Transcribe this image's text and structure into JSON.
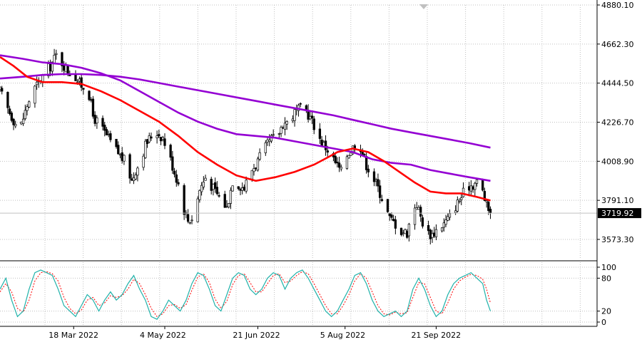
{
  "colors": {
    "background": "#ffffff",
    "grid": "#c0c0c0",
    "candle": "#000000",
    "ma_fast": "#ff0000",
    "ma_mid": "#9400d3",
    "ma_slow": "#9400d3",
    "stoch_main": "#20b2aa",
    "stoch_signal": "#ff0000",
    "current_price_bg": "#000000",
    "current_price_line": "#c0c0c0"
  },
  "chart_data": [
    {
      "type": "candlestick",
      "title": "",
      "xlabel": "",
      "ylabel": "",
      "y_ticks": [
        "4880.10",
        "4662.30",
        "4444.50",
        "4226.70",
        "4008.90",
        "3791.10",
        "3573.30"
      ],
      "y_tick_values": [
        4880.1,
        4662.3,
        4444.5,
        4226.7,
        4008.9,
        3791.1,
        3573.3
      ],
      "x_ticks": [
        "18 Mar 2022",
        "4 May 2022",
        "21 Jun 2022",
        "5 Aug 2022",
        "21 Sep 2022"
      ],
      "x_tick_days": [
        76,
        123,
        171,
        216,
        263
      ],
      "ylim": [
        3490,
        4880.1
      ],
      "current_price": "3719.92",
      "current_price_value": 3719.92,
      "grid": true,
      "x_day_range": [
        38,
        346
      ],
      "close_anchors": [
        [
          38,
          4400
        ],
        [
          42,
          4300
        ],
        [
          44,
          4260
        ],
        [
          48,
          4180
        ],
        [
          52,
          4320
        ],
        [
          55,
          4400
        ],
        [
          60,
          4480
        ],
        [
          64,
          4540
        ],
        [
          67,
          4600
        ],
        [
          70,
          4560
        ],
        [
          73,
          4510
        ],
        [
          76,
          4500
        ],
        [
          79,
          4440
        ],
        [
          82,
          4420
        ],
        [
          84,
          4380
        ],
        [
          86,
          4260
        ],
        [
          90,
          4200
        ],
        [
          93,
          4150
        ],
        [
          96,
          4100
        ],
        [
          100,
          4040
        ],
        [
          103,
          4000
        ],
        [
          106,
          3900
        ],
        [
          108,
          3960
        ],
        [
          110,
          4000
        ],
        [
          113,
          4100
        ],
        [
          116,
          4150
        ],
        [
          119,
          4170
        ],
        [
          122,
          4140
        ],
        [
          125,
          4050
        ],
        [
          128,
          3950
        ],
        [
          131,
          3850
        ],
        [
          133,
          3740
        ],
        [
          135,
          3680
        ],
        [
          138,
          3700
        ],
        [
          141,
          3850
        ],
        [
          144,
          3920
        ],
        [
          146,
          3890
        ],
        [
          149,
          3840
        ],
        [
          152,
          3800
        ],
        [
          155,
          3750
        ],
        [
          158,
          3900
        ],
        [
          161,
          3880
        ],
        [
          164,
          3860
        ],
        [
          167,
          3950
        ],
        [
          170,
          3990
        ],
        [
          173,
          4050
        ],
        [
          176,
          4100
        ],
        [
          178,
          4130
        ],
        [
          181,
          4150
        ],
        [
          184,
          4220
        ],
        [
          187,
          4230
        ],
        [
          190,
          4280
        ],
        [
          193,
          4300
        ],
        [
          196,
          4290
        ],
        [
          198,
          4250
        ],
        [
          200,
          4210
        ],
        [
          202,
          4150
        ],
        [
          205,
          4100
        ],
        [
          208,
          4060
        ],
        [
          211,
          4000
        ],
        [
          214,
          3950
        ],
        [
          216,
          4030
        ],
        [
          218,
          4060
        ],
        [
          221,
          4100
        ],
        [
          224,
          4090
        ],
        [
          227,
          3990
        ],
        [
          230,
          3930
        ],
        [
          233,
          3860
        ],
        [
          236,
          3780
        ],
        [
          239,
          3690
        ],
        [
          242,
          3660
        ],
        [
          245,
          3620
        ],
        [
          248,
          3610
        ],
        [
          251,
          3750
        ],
        [
          253,
          3770
        ],
        [
          255,
          3700
        ],
        [
          258,
          3610
        ],
        [
          261,
          3600
        ],
        [
          264,
          3640
        ],
        [
          267,
          3660
        ],
        [
          270,
          3700
        ],
        [
          273,
          3760
        ],
        [
          276,
          3810
        ],
        [
          279,
          3870
        ],
        [
          282,
          3880
        ],
        [
          285,
          3900
        ],
        [
          287,
          3840
        ],
        [
          289,
          3760
        ],
        [
          291,
          3719.92
        ]
      ],
      "series": [
        {
          "name": "",
          "type": "moving-average",
          "values_ref": "ma_fast"
        },
        {
          "name": "",
          "type": "moving-average",
          "values_ref": "ma_mid"
        },
        {
          "name": "",
          "type": "moving-average",
          "values_ref": "ma_slow"
        }
      ],
      "ma_fast": [
        [
          38,
          4590
        ],
        [
          45,
          4540
        ],
        [
          52,
          4480
        ],
        [
          60,
          4450
        ],
        [
          70,
          4450
        ],
        [
          80,
          4440
        ],
        [
          90,
          4400
        ],
        [
          100,
          4350
        ],
        [
          110,
          4290
        ],
        [
          120,
          4230
        ],
        [
          130,
          4150
        ],
        [
          140,
          4060
        ],
        [
          150,
          3990
        ],
        [
          160,
          3930
        ],
        [
          170,
          3900
        ],
        [
          180,
          3920
        ],
        [
          190,
          3950
        ],
        [
          200,
          3990
        ],
        [
          207,
          4030
        ],
        [
          212,
          4060
        ],
        [
          220,
          4080
        ],
        [
          228,
          4060
        ],
        [
          236,
          4010
        ],
        [
          244,
          3950
        ],
        [
          252,
          3890
        ],
        [
          260,
          3840
        ],
        [
          268,
          3830
        ],
        [
          276,
          3830
        ],
        [
          284,
          3810
        ],
        [
          291,
          3790
        ]
      ],
      "ma_mid": [
        [
          38,
          4600
        ],
        [
          50,
          4580
        ],
        [
          60,
          4560
        ],
        [
          70,
          4550
        ],
        [
          80,
          4530
        ],
        [
          90,
          4500
        ],
        [
          100,
          4460
        ],
        [
          110,
          4400
        ],
        [
          120,
          4340
        ],
        [
          130,
          4280
        ],
        [
          140,
          4230
        ],
        [
          150,
          4190
        ],
        [
          160,
          4160
        ],
        [
          170,
          4150
        ],
        [
          180,
          4140
        ],
        [
          190,
          4120
        ],
        [
          200,
          4100
        ],
        [
          210,
          4080
        ],
        [
          220,
          4060
        ],
        [
          230,
          4020
        ],
        [
          240,
          4000
        ],
        [
          250,
          3990
        ],
        [
          260,
          3960
        ],
        [
          270,
          3940
        ],
        [
          280,
          3920
        ],
        [
          291,
          3900
        ]
      ],
      "ma_slow": [
        [
          38,
          4470
        ],
        [
          50,
          4480
        ],
        [
          60,
          4490
        ],
        [
          70,
          4495
        ],
        [
          80,
          4495
        ],
        [
          90,
          4490
        ],
        [
          100,
          4480
        ],
        [
          110,
          4465
        ],
        [
          120,
          4445
        ],
        [
          130,
          4425
        ],
        [
          140,
          4405
        ],
        [
          150,
          4385
        ],
        [
          160,
          4365
        ],
        [
          170,
          4345
        ],
        [
          180,
          4325
        ],
        [
          190,
          4305
        ],
        [
          200,
          4285
        ],
        [
          210,
          4265
        ],
        [
          220,
          4240
        ],
        [
          230,
          4215
        ],
        [
          240,
          4190
        ],
        [
          250,
          4170
        ],
        [
          260,
          4150
        ],
        [
          270,
          4130
        ],
        [
          280,
          4110
        ],
        [
          291,
          4085
        ]
      ]
    },
    {
      "type": "line",
      "title": "",
      "y_ticks": [
        "100",
        "80",
        "20",
        "0"
      ],
      "y_tick_values": [
        100,
        80,
        20,
        0
      ],
      "ylim": [
        0,
        100
      ],
      "grid": true,
      "series": [
        {
          "name": "",
          "values_ref": "stoch_main"
        },
        {
          "name": "",
          "values_ref": "stoch_signal"
        }
      ],
      "stoch_main": [
        [
          38,
          60
        ],
        [
          41,
          80
        ],
        [
          44,
          40
        ],
        [
          47,
          10
        ],
        [
          50,
          20
        ],
        [
          53,
          60
        ],
        [
          56,
          90
        ],
        [
          59,
          95
        ],
        [
          62,
          90
        ],
        [
          65,
          85
        ],
        [
          68,
          60
        ],
        [
          71,
          30
        ],
        [
          74,
          20
        ],
        [
          77,
          10
        ],
        [
          80,
          30
        ],
        [
          83,
          50
        ],
        [
          86,
          40
        ],
        [
          89,
          20
        ],
        [
          92,
          40
        ],
        [
          95,
          55
        ],
        [
          98,
          40
        ],
        [
          101,
          50
        ],
        [
          104,
          70
        ],
        [
          107,
          85
        ],
        [
          110,
          60
        ],
        [
          113,
          40
        ],
        [
          116,
          10
        ],
        [
          119,
          5
        ],
        [
          122,
          20
        ],
        [
          125,
          40
        ],
        [
          128,
          30
        ],
        [
          131,
          20
        ],
        [
          134,
          40
        ],
        [
          137,
          70
        ],
        [
          140,
          90
        ],
        [
          143,
          85
        ],
        [
          146,
          60
        ],
        [
          149,
          30
        ],
        [
          152,
          20
        ],
        [
          155,
          50
        ],
        [
          158,
          80
        ],
        [
          161,
          90
        ],
        [
          164,
          85
        ],
        [
          167,
          60
        ],
        [
          170,
          50
        ],
        [
          173,
          60
        ],
        [
          176,
          80
        ],
        [
          179,
          90
        ],
        [
          182,
          85
        ],
        [
          185,
          60
        ],
        [
          188,
          80
        ],
        [
          191,
          90
        ],
        [
          194,
          95
        ],
        [
          197,
          80
        ],
        [
          200,
          60
        ],
        [
          203,
          40
        ],
        [
          206,
          20
        ],
        [
          209,
          10
        ],
        [
          212,
          20
        ],
        [
          215,
          40
        ],
        [
          218,
          60
        ],
        [
          221,
          85
        ],
        [
          224,
          90
        ],
        [
          227,
          70
        ],
        [
          230,
          40
        ],
        [
          233,
          20
        ],
        [
          236,
          10
        ],
        [
          239,
          15
        ],
        [
          242,
          20
        ],
        [
          245,
          10
        ],
        [
          248,
          20
        ],
        [
          251,
          60
        ],
        [
          254,
          80
        ],
        [
          257,
          60
        ],
        [
          260,
          30
        ],
        [
          263,
          10
        ],
        [
          266,
          20
        ],
        [
          269,
          50
        ],
        [
          272,
          70
        ],
        [
          275,
          80
        ],
        [
          278,
          85
        ],
        [
          281,
          90
        ],
        [
          284,
          80
        ],
        [
          287,
          70
        ],
        [
          289,
          40
        ],
        [
          291,
          20
        ]
      ],
      "stoch_signal": [
        [
          38,
          55
        ],
        [
          41,
          70
        ],
        [
          44,
          55
        ],
        [
          47,
          25
        ],
        [
          50,
          18
        ],
        [
          53,
          40
        ],
        [
          56,
          75
        ],
        [
          59,
          90
        ],
        [
          62,
          92
        ],
        [
          65,
          88
        ],
        [
          68,
          75
        ],
        [
          71,
          45
        ],
        [
          74,
          25
        ],
        [
          77,
          15
        ],
        [
          80,
          22
        ],
        [
          83,
          40
        ],
        [
          86,
          45
        ],
        [
          89,
          30
        ],
        [
          92,
          35
        ],
        [
          95,
          48
        ],
        [
          98,
          45
        ],
        [
          101,
          48
        ],
        [
          104,
          60
        ],
        [
          107,
          78
        ],
        [
          110,
          70
        ],
        [
          113,
          50
        ],
        [
          116,
          25
        ],
        [
          119,
          10
        ],
        [
          122,
          15
        ],
        [
          125,
          30
        ],
        [
          128,
          32
        ],
        [
          131,
          25
        ],
        [
          134,
          32
        ],
        [
          137,
          58
        ],
        [
          140,
          82
        ],
        [
          143,
          88
        ],
        [
          146,
          72
        ],
        [
          149,
          42
        ],
        [
          152,
          25
        ],
        [
          155,
          38
        ],
        [
          158,
          68
        ],
        [
          161,
          85
        ],
        [
          164,
          88
        ],
        [
          167,
          72
        ],
        [
          170,
          55
        ],
        [
          173,
          55
        ],
        [
          176,
          70
        ],
        [
          179,
          85
        ],
        [
          182,
          88
        ],
        [
          185,
          72
        ],
        [
          188,
          75
        ],
        [
          191,
          85
        ],
        [
          194,
          92
        ],
        [
          197,
          88
        ],
        [
          200,
          70
        ],
        [
          203,
          50
        ],
        [
          206,
          30
        ],
        [
          209,
          15
        ],
        [
          212,
          15
        ],
        [
          215,
          30
        ],
        [
          218,
          50
        ],
        [
          221,
          75
        ],
        [
          224,
          88
        ],
        [
          227,
          80
        ],
        [
          230,
          55
        ],
        [
          233,
          30
        ],
        [
          236,
          15
        ],
        [
          239,
          13
        ],
        [
          242,
          18
        ],
        [
          245,
          15
        ],
        [
          248,
          17
        ],
        [
          251,
          45
        ],
        [
          254,
          72
        ],
        [
          257,
          70
        ],
        [
          260,
          45
        ],
        [
          263,
          20
        ],
        [
          266,
          15
        ],
        [
          269,
          35
        ],
        [
          272,
          60
        ],
        [
          275,
          75
        ],
        [
          278,
          82
        ],
        [
          281,
          87
        ],
        [
          284,
          85
        ],
        [
          287,
          78
        ],
        [
          289,
          60
        ],
        [
          291,
          35
        ]
      ]
    }
  ]
}
